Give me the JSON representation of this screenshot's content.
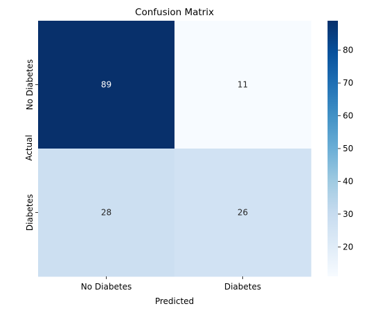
{
  "chart_data": {
    "type": "heatmap",
    "title": "Confusion Matrix",
    "xlabel": "Predicted",
    "ylabel": "Actual",
    "x_categories": [
      "No Diabetes",
      "Diabetes"
    ],
    "y_categories": [
      "No Diabetes",
      "Diabetes"
    ],
    "values": [
      [
        89,
        11
      ],
      [
        28,
        26
      ]
    ],
    "colormap": "Blues",
    "colorbar": {
      "min": 11,
      "max": 89,
      "ticks": [
        20,
        30,
        40,
        50,
        60,
        70,
        80
      ]
    }
  }
}
